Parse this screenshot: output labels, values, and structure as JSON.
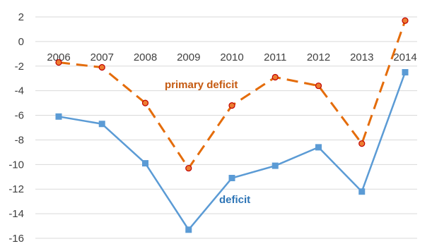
{
  "chart_data": {
    "type": "line",
    "title": "",
    "xlabel": "",
    "ylabel": "",
    "ylim": [
      -16,
      2
    ],
    "yticks": [
      2,
      0,
      -2,
      -4,
      -6,
      -8,
      -10,
      -12,
      -14,
      -16
    ],
    "ytick_labels": [
      "2",
      "0",
      "-2",
      "-4",
      "-6",
      "-8",
      "-10",
      "-12",
      "-14",
      "-16"
    ],
    "categories": [
      "2006",
      "2007",
      "2008",
      "2009",
      "2010",
      "2011",
      "2012",
      "2013",
      "2014"
    ],
    "grid": true,
    "legend": "none",
    "series": [
      {
        "name": "primary deficit",
        "color": "#E46C0A",
        "line_style": "dashed",
        "marker": "circle",
        "values": [
          -1.7,
          -2.1,
          -5.0,
          -10.3,
          -5.2,
          -2.9,
          -3.6,
          -8.3,
          1.7
        ]
      },
      {
        "name": "deficit",
        "color": "#5B9BD5",
        "line_style": "solid",
        "marker": "square",
        "values": [
          -6.1,
          -6.7,
          -9.9,
          -15.3,
          -11.1,
          -10.1,
          -8.6,
          -12.2,
          -2.5
        ]
      }
    ]
  }
}
